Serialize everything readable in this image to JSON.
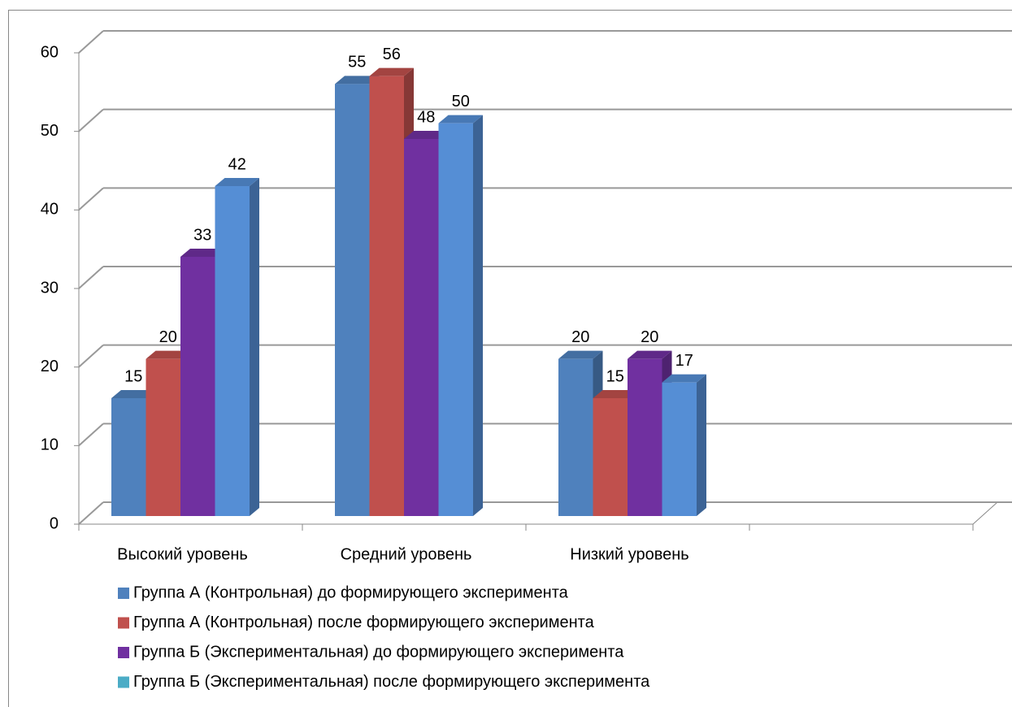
{
  "chart_data": {
    "type": "bar3d",
    "categories": [
      "Высокий уровень",
      "Средний уровень",
      "Низкий уровень",
      null
    ],
    "series": [
      {
        "name": "Группа А (Контрольная) до формирующего эксперимента",
        "color": "#4f81bd",
        "legend_color": "#4f81bd",
        "values": [
          15,
          55,
          20,
          null
        ]
      },
      {
        "name": "Группа А (Контрольная) после формирующего эксперимента",
        "color": "#c0504d",
        "legend_color": "#c0504d",
        "values": [
          20,
          56,
          15,
          null
        ]
      },
      {
        "name": "Группа Б (Экспериментальная) до формирующего эксперимента",
        "color": "#7030a0",
        "legend_color": "#7030a0",
        "values": [
          33,
          48,
          20,
          null
        ]
      },
      {
        "name": "Группа Б (Экспериментальная) после формирующего эксперимента",
        "color": "#558ed5",
        "legend_color": "#4bacc6",
        "values": [
          42,
          50,
          17,
          null
        ]
      }
    ],
    "ylim": [
      0,
      60
    ],
    "yticks": [
      0,
      10,
      20,
      30,
      40,
      50,
      60
    ],
    "grid": true,
    "legend": "bottom"
  }
}
